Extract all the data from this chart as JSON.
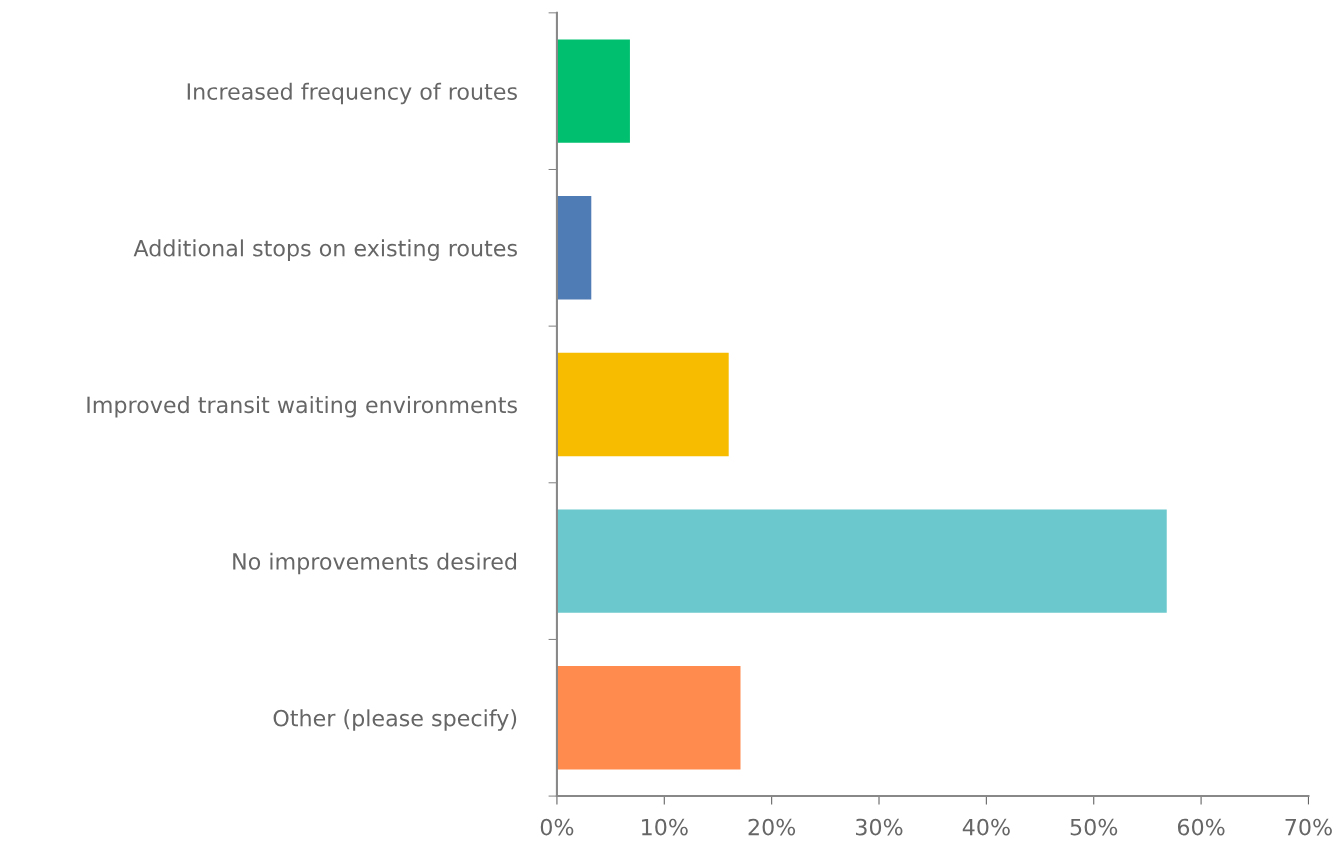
{
  "chart_data": {
    "type": "bar",
    "orientation": "horizontal",
    "categories": [
      "Increased frequency of routes",
      "Additional stops on existing routes",
      "Improved transit waiting environments",
      "No improvements desired",
      "Other (please specify)"
    ],
    "values": [
      6.8,
      3.2,
      16.0,
      56.8,
      17.1
    ],
    "colors": [
      "#00bf6f",
      "#507cb6",
      "#f7bc00",
      "#6bc8cd",
      "#ff8b4f"
    ],
    "xlim": [
      0,
      70
    ],
    "xticks": [
      {
        "value": 0,
        "label": "0%"
      },
      {
        "value": 10,
        "label": "10%"
      },
      {
        "value": 20,
        "label": "20%"
      },
      {
        "value": 30,
        "label": "30%"
      },
      {
        "value": 40,
        "label": "40%"
      },
      {
        "value": 50,
        "label": "50%"
      },
      {
        "value": 60,
        "label": "60%"
      },
      {
        "value": 70,
        "label": "70%"
      }
    ],
    "grid": false,
    "legend": false
  }
}
